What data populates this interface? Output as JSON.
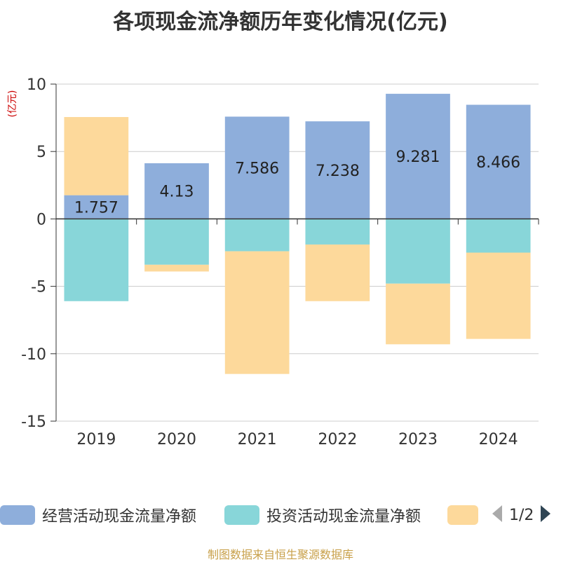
{
  "title": "各项现金流净额历年变化情况(亿元)",
  "unit_label": "(亿元)",
  "footer": "制图数据来自恒生聚源数据库",
  "legend": {
    "items": [
      {
        "label": "经营活动现金流量净额",
        "color": "#8eaedb"
      },
      {
        "label": "投资活动现金流量净额",
        "color": "#88d6d9"
      },
      {
        "label": "",
        "color": "#fdd99b"
      }
    ],
    "page": "1/2"
  },
  "colors": {
    "grid": "#cccccc",
    "axis": "#333333"
  },
  "chart_data": {
    "type": "bar",
    "stacked": true,
    "categories": [
      "2019",
      "2020",
      "2021",
      "2022",
      "2023",
      "2024"
    ],
    "ylim": [
      -15,
      10
    ],
    "yticks": [
      10,
      5,
      0,
      -5,
      -10,
      -15
    ],
    "grid": true,
    "legend_position": "bottom",
    "series": [
      {
        "name": "经营活动现金流量净额",
        "color": "#8eaedb",
        "values": [
          1.757,
          4.13,
          7.586,
          7.238,
          9.281,
          8.466
        ],
        "labels": [
          "1.757",
          "4.13",
          "7.586",
          "7.238",
          "9.281",
          "8.466"
        ]
      },
      {
        "name": "投资活动现金流量净额",
        "color": "#88d6d9",
        "values": [
          -6.1,
          -3.4,
          -2.4,
          -1.9,
          -4.8,
          -2.5
        ]
      },
      {
        "color": "#fdd99b",
        "values": [
          5.8,
          -0.5,
          -9.1,
          -4.2,
          -4.5,
          -6.4
        ]
      }
    ]
  }
}
